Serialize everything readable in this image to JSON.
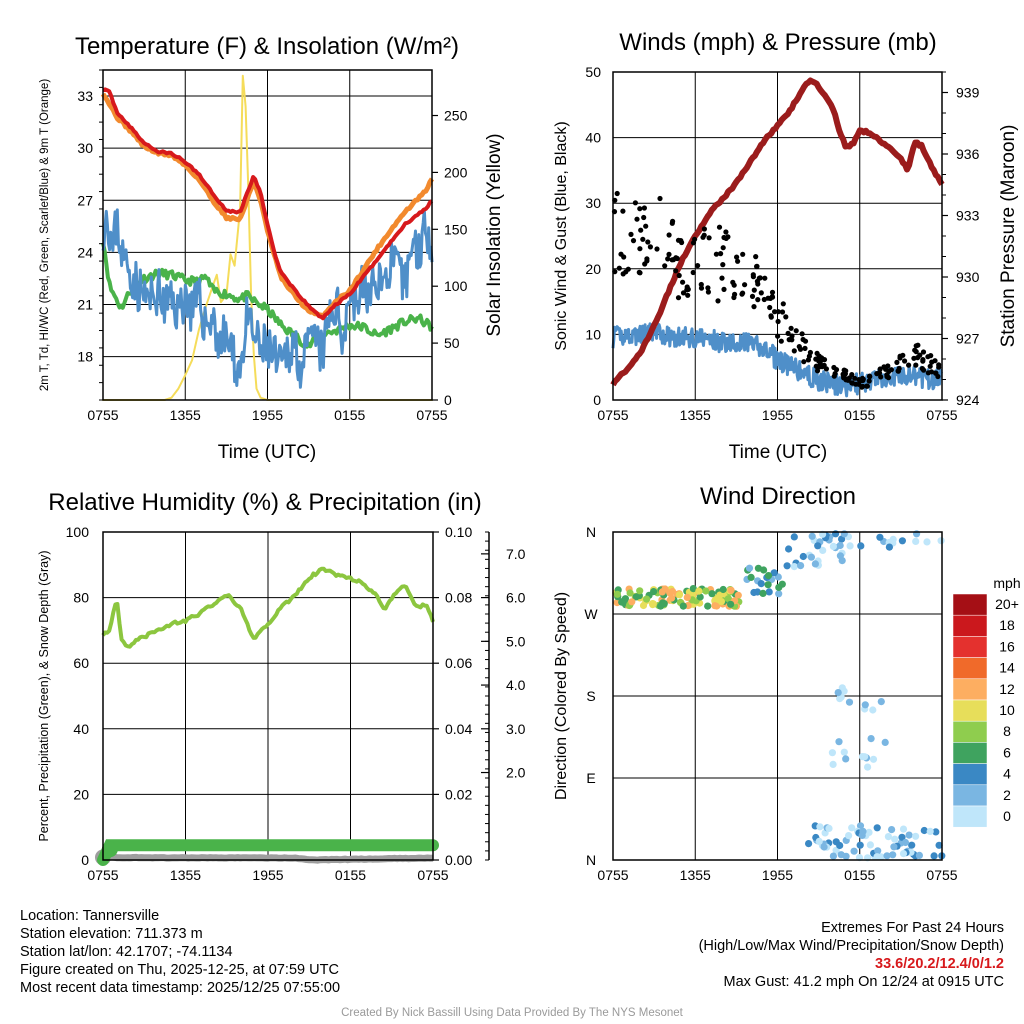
{
  "chart_data": [
    {
      "id": "temp",
      "type": "line",
      "title": "Temperature (F) & Insolation (W/m²)",
      "xlabel": "Time (UTC)",
      "ylabel": "2m T, Td, HI/WC (Red, Green, Scarlet/Blue) & 9m T (Orange)",
      "y2label": "Solar Insolation (Yellow)",
      "x_ticks": [
        "0755",
        "1355",
        "1955",
        "0155",
        "0755"
      ],
      "ylim": [
        15.5,
        34.5
      ],
      "y_ticks": [
        18,
        21,
        24,
        27,
        30,
        33
      ],
      "y2lim": [
        0,
        290
      ],
      "y2_ticks": [
        0,
        50,
        100,
        150,
        200,
        250
      ],
      "series": [
        {
          "name": "2m Temperature",
          "color": "#d7191c",
          "axis": "left",
          "x": [
            0,
            0.5,
            1,
            2,
            3,
            4,
            5,
            6,
            7,
            8,
            9,
            10,
            10.5,
            11,
            11.5,
            12,
            12.5,
            13,
            13.5,
            14,
            15,
            16,
            17,
            18,
            19,
            20,
            21,
            22,
            23,
            23.5,
            24
          ],
          "y": [
            33.4,
            33.2,
            32.1,
            31.2,
            30.3,
            29.8,
            29.7,
            29.2,
            28.5,
            27.4,
            26.4,
            26.3,
            27.4,
            28.4,
            27.4,
            25.6,
            24.0,
            22.8,
            22.3,
            21.8,
            20.9,
            20.2,
            21.0,
            21.6,
            22.6,
            23.6,
            24.6,
            25.6,
            26.2,
            26.5,
            27.0
          ]
        },
        {
          "name": "9m Temperature",
          "color": "#f28a2e",
          "axis": "left",
          "x": [
            0,
            1,
            2,
            3,
            4,
            5,
            6,
            7,
            8,
            9,
            10,
            10.5,
            11,
            11.5,
            12,
            13,
            14,
            15,
            16,
            17,
            18,
            19,
            20,
            21,
            22,
            23,
            23.5,
            24
          ],
          "y": [
            33.2,
            31.8,
            31.0,
            30.1,
            29.7,
            29.6,
            29.0,
            28.2,
            27.0,
            26.0,
            25.9,
            27.0,
            28.1,
            27.0,
            25.2,
            22.5,
            21.5,
            20.6,
            20.3,
            21.2,
            21.8,
            23.0,
            24.2,
            25.3,
            26.3,
            27.1,
            27.5,
            28.2
          ]
        },
        {
          "name": "Heat Index / Wind Chill",
          "color": "#4f8fc9",
          "axis": "left",
          "x": [
            0,
            0.3,
            0.7,
            1,
            1.5,
            2,
            2.5,
            3,
            3.5,
            4,
            4.5,
            5,
            5.5,
            6,
            6.5,
            7,
            7.5,
            8,
            8.5,
            9,
            9.5,
            10,
            10.5,
            11,
            11.5,
            12,
            12.5,
            13,
            13.5,
            14,
            14.5,
            15,
            15.5,
            16,
            16.5,
            17,
            17.5,
            18,
            18.5,
            19,
            19.5,
            20,
            20.5,
            21,
            21.5,
            22,
            22.5,
            23,
            23.5,
            24
          ],
          "y": [
            25.5,
            26.4,
            24.0,
            25.8,
            23.5,
            23.0,
            22.0,
            21.5,
            21.2,
            21.8,
            20.8,
            21.3,
            20.6,
            21.6,
            20.6,
            21.2,
            19.8,
            20.3,
            18.6,
            19.3,
            17.8,
            17.3,
            20.1,
            19.2,
            18.3,
            18.6,
            17.9,
            17.2,
            18.4,
            18.8,
            17.2,
            18.6,
            19.0,
            18.0,
            20.2,
            21.0,
            19.2,
            21.8,
            21.0,
            22.2,
            21.2,
            22.8,
            22.0,
            23.6,
            22.8,
            21.9,
            24.6,
            24.0,
            25.5,
            24.8
          ]
        },
        {
          "name": "2m Dew Point",
          "color": "#4ab34a",
          "axis": "left",
          "x": [
            0,
            0.5,
            1,
            1.3,
            1.6,
            2,
            2.5,
            3,
            4,
            5,
            6,
            7,
            7.5,
            8,
            9,
            10,
            10.5,
            11,
            12,
            13,
            14,
            15,
            16,
            17,
            18,
            19,
            20,
            21,
            22,
            23,
            24
          ],
          "y": [
            24.8,
            22.0,
            21.3,
            20.8,
            21.2,
            21.8,
            22.2,
            22.5,
            22.8,
            22.7,
            22.4,
            22.3,
            22.6,
            21.8,
            21.6,
            21.3,
            21.5,
            21.2,
            20.7,
            19.8,
            19.2,
            18.6,
            19.3,
            19.5,
            19.8,
            19.7,
            19.2,
            19.6,
            20.0,
            20.2,
            19.7
          ]
        },
        {
          "name": "Solar Insolation",
          "color": "#f5dc5a",
          "axis": "right",
          "x": [
            0,
            4.5,
            5,
            5.5,
            6,
            6.5,
            7,
            7.5,
            8,
            8.3,
            8.6,
            9,
            9.3,
            9.6,
            10,
            10.2,
            10.4,
            10.6,
            10.8,
            11,
            11.2,
            11.5,
            12,
            24
          ],
          "y": [
            0,
            0,
            2,
            10,
            22,
            35,
            62,
            82,
            100,
            110,
            86,
            92,
            128,
            118,
            168,
            285,
            258,
            186,
            92,
            40,
            10,
            2,
            0,
            0
          ]
        }
      ]
    },
    {
      "id": "winds",
      "type": "scatter",
      "title": "Winds (mph) & Pressure (mb)",
      "xlabel": "Time (UTC)",
      "ylabel": "Sonic Wind & Gust (Blue, Black)",
      "y2label": "Station Pressure (Maroon)",
      "x_ticks": [
        "0755",
        "1355",
        "1955",
        "0155",
        "0755"
      ],
      "ylim": [
        0,
        50
      ],
      "y_ticks": [
        0,
        10,
        20,
        30,
        40,
        50
      ],
      "y2lim": [
        924,
        940
      ],
      "y2_ticks": [
        924,
        927,
        930,
        933,
        936,
        939
      ],
      "series": [
        {
          "name": "Sonic Wind",
          "color": "#4f8fc9",
          "axis": "left",
          "x": [
            0,
            1,
            2,
            3,
            4,
            5,
            6,
            7,
            8,
            9,
            10,
            11,
            12,
            13,
            14,
            15,
            16,
            17,
            18,
            19,
            20,
            21,
            22,
            23,
            24
          ],
          "y": [
            9.5,
            10.0,
            9.8,
            10.2,
            9.8,
            9.5,
            9.6,
            9.2,
            8.8,
            9.0,
            8.5,
            7.8,
            6.2,
            5.0,
            4.0,
            3.0,
            2.4,
            2.2,
            2.5,
            3.0,
            3.4,
            3.8,
            3.6,
            3.3,
            3.0
          ]
        },
        {
          "name": "Gust",
          "color": "#000000",
          "axis": "left",
          "x": [
            0,
            1,
            2,
            3,
            4,
            5,
            6,
            7,
            8,
            9,
            10,
            11,
            12,
            13,
            14,
            15,
            16,
            17,
            18,
            19,
            20,
            21,
            22,
            23,
            24
          ],
          "y": [
            25,
            26,
            24,
            26,
            23,
            20,
            22,
            20,
            21,
            19,
            19,
            16,
            13,
            10,
            7.5,
            5.5,
            4.5,
            3.5,
            2.5,
            3,
            4.5,
            5.5,
            7,
            5.5,
            4.5
          ]
        },
        {
          "name": "Station Pressure",
          "color": "#9b1c1c",
          "axis": "right",
          "x": [
            0,
            1,
            2,
            3,
            4,
            5,
            6,
            7,
            8,
            9,
            10,
            11,
            12,
            13,
            14,
            14.5,
            15,
            16,
            16.5,
            17,
            17.5,
            18,
            18.5,
            19,
            20,
            21,
            21.5,
            22,
            22.5,
            23,
            23.5,
            24
          ],
          "y": [
            924.8,
            925.5,
            926.3,
            927.6,
            929.2,
            930.8,
            932.0,
            933.1,
            933.8,
            934.6,
            935.6,
            936.6,
            937.4,
            938.2,
            939.4,
            939.6,
            939.3,
            938.3,
            937.2,
            936.3,
            936.5,
            937.1,
            937.1,
            936.9,
            936.4,
            935.8,
            935.2,
            936.6,
            936.4,
            935.7,
            935.1,
            934.5
          ]
        }
      ]
    },
    {
      "id": "rh",
      "type": "line",
      "title": "Relative Humidity (%) & Precipitation (in)",
      "xlabel": "",
      "ylabel": "Percent, Precipitation (Green), & Snow Depth (Gray)",
      "x_ticks": [
        "0755",
        "1355",
        "1955",
        "0155",
        "0755"
      ],
      "ylim": [
        0,
        100
      ],
      "y_ticks": [
        0,
        20,
        40,
        60,
        80,
        100
      ],
      "y2lim": [
        0,
        0.1
      ],
      "y2_ticks": [
        "0.00",
        "0.02",
        "0.04",
        "0.06",
        "0.08",
        "0.10"
      ],
      "y3lim": [
        0,
        7.5
      ],
      "y3_ticks": [
        "2.0",
        "3.0",
        "4.0",
        "5.0",
        "6.0",
        "7.0"
      ],
      "series": [
        {
          "name": "Relative Humidity",
          "color": "#8cc63f",
          "axis": "left",
          "x": [
            0,
            0.5,
            1,
            1.3,
            1.6,
            2,
            2.5,
            3,
            3.5,
            4,
            5,
            6,
            7,
            8,
            9,
            10,
            10.5,
            11,
            11.5,
            12,
            13,
            14,
            15,
            16,
            17,
            18,
            19,
            20,
            20.5,
            21,
            22,
            22.5,
            23,
            23.5,
            24
          ],
          "y": [
            69,
            70,
            80,
            68,
            65,
            65,
            67,
            68,
            69,
            70,
            72,
            73,
            75,
            78,
            81,
            77,
            72,
            67,
            70,
            72,
            77,
            81,
            86,
            89,
            87,
            86,
            84,
            80,
            76,
            80,
            84,
            79,
            77,
            78,
            73
          ]
        },
        {
          "name": "Precipitation",
          "color": "#4ab34a",
          "axis": "right",
          "x": [
            0,
            0.5,
            24
          ],
          "y": [
            0,
            0.0045,
            0.0045
          ]
        },
        {
          "name": "Snow Depth",
          "color": "#9e9e9e",
          "axis": "left",
          "x": [
            0,
            0.5,
            1,
            14,
            15,
            24
          ],
          "y": [
            0.6,
            1.0,
            0.7,
            0.6,
            0.0,
            0.6
          ]
        }
      ]
    },
    {
      "id": "wdir",
      "type": "scatter",
      "title": "Wind Direction",
      "xlabel": "",
      "ylabel": "Direction (Colored By Speed)",
      "x_ticks": [
        "0755",
        "1355",
        "1955",
        "0155",
        "0755"
      ],
      "y_ticks": [
        "N",
        "E",
        "S",
        "W",
        "N"
      ],
      "ylim": [
        0,
        360
      ],
      "legend_title": "mph",
      "legend_labels": [
        "20+",
        "18",
        "16",
        "14",
        "12",
        "10",
        "8",
        "6",
        "4",
        "2",
        "0"
      ],
      "legend_colors": [
        "#a50f15",
        "#cb181d",
        "#e4312e",
        "#f06a2a",
        "#fdae61",
        "#e7de5a",
        "#8fcd4e",
        "#3fa35f",
        "#3a88c4",
        "#7ab6e2",
        "#bfe6fa"
      ],
      "clusters": [
        {
          "x0": 0.2,
          "x1": 9.4,
          "y": 288,
          "spread": 10,
          "n": 110,
          "color": [
            4,
            7
          ]
        },
        {
          "x0": 9.5,
          "x1": 12.5,
          "y": 305,
          "spread": 16,
          "n": 22,
          "color": [
            7,
            9
          ]
        },
        {
          "x0": 12.5,
          "x1": 17,
          "y": 340,
          "spread": 20,
          "n": 25,
          "color": [
            8,
            10
          ]
        },
        {
          "x0": 15,
          "x1": 24,
          "y": 352,
          "spread": 9,
          "n": 20,
          "color": [
            8,
            10
          ]
        },
        {
          "x0": 16,
          "x1": 20,
          "y": 145,
          "spread": 45,
          "n": 22,
          "color": [
            9,
            10
          ]
        },
        {
          "x0": 14,
          "x1": 24,
          "y": 20,
          "spread": 18,
          "n": 70,
          "color": [
            8,
            10
          ]
        }
      ]
    }
  ],
  "info_left": {
    "line1": "Location: Tannersville",
    "line2": "Station elevation: 711.373 m",
    "line3": "Station lat/lon: 42.1707; -74.1134",
    "line4": "Figure created on Thu, 2025-12-25, at 07:59 UTC",
    "line5": "Most recent data timestamp: 2025/12/25 07:55:00"
  },
  "info_right": {
    "line1": "Extremes For Past 24 Hours",
    "line2": "(High/Low/Max Wind/Precipitation/Snow Depth)",
    "extremes": "33.6/20.2/12.4/0/1.2",
    "line4": "Max Gust: 41.2 mph On 12/24 at 0915 UTC"
  },
  "credit": "Created By Nick Bassill Using Data Provided By The NYS Mesonet"
}
